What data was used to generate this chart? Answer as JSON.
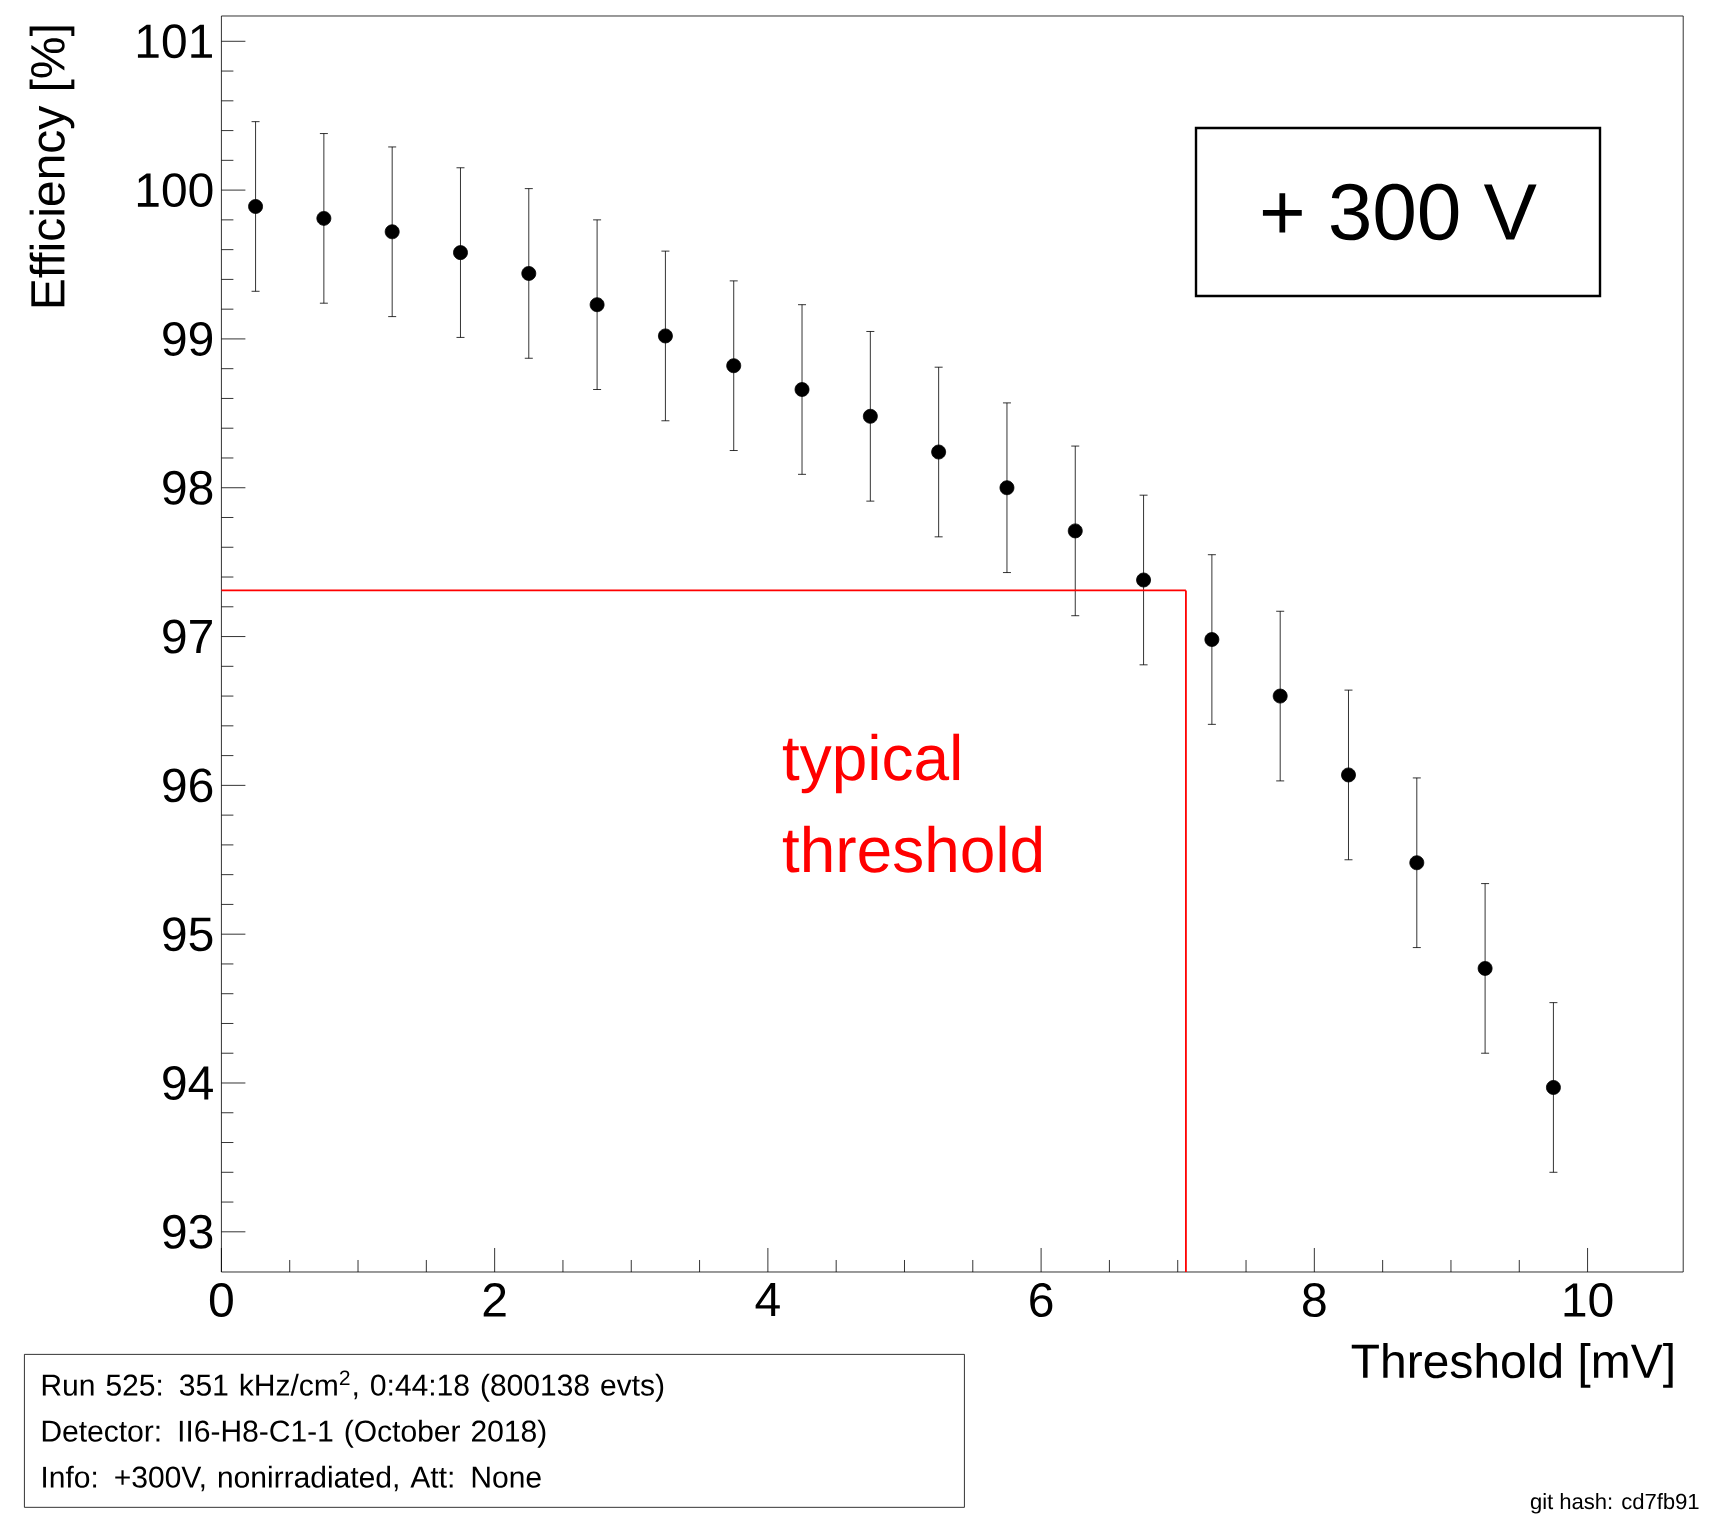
{
  "chart_data": {
    "type": "scatter",
    "xlabel": "Threshold [mV]",
    "ylabel": "Efficiency [%]",
    "x": [
      0.25,
      0.75,
      1.25,
      1.75,
      2.25,
      2.75,
      3.25,
      3.75,
      4.25,
      4.75,
      5.25,
      5.75,
      6.25,
      6.75,
      7.25,
      7.75,
      8.25,
      8.75,
      9.25,
      9.75
    ],
    "series": [
      {
        "color": "#000000",
        "values": [
          99.89,
          99.81,
          99.72,
          99.58,
          99.44,
          99.23,
          99.02,
          98.82,
          98.66,
          98.48,
          98.24,
          98.0,
          97.71,
          97.38,
          96.98,
          96.6,
          96.07,
          95.48,
          94.77,
          93.97
        ],
        "errors": [
          0.57,
          0.57,
          0.57,
          0.57,
          0.57,
          0.57,
          0.57,
          0.57,
          0.57,
          0.57,
          0.57,
          0.57,
          0.57,
          0.57,
          0.57,
          0.57,
          0.57,
          0.57,
          0.57,
          0.57
        ]
      }
    ],
    "marker": "circle",
    "xlim": [
      0,
      10.7
    ],
    "ylim": [
      92.73,
      101.17
    ],
    "xticks": [
      0,
      2,
      4,
      6,
      8,
      10
    ],
    "yticks": [
      93,
      94,
      95,
      96,
      97,
      98,
      99,
      100,
      101
    ],
    "ref_lines": [
      {
        "axis": "y",
        "value": 97.31,
        "color": "#ff0000"
      },
      {
        "axis": "x",
        "value": 7.06,
        "color": "#ff0000",
        "label": "typical threshold"
      }
    ],
    "annotations": [
      "+ 300 V",
      "Run 525: 351 kHz/cm$^{2}$, 0:44:18 (800138 evts)",
      "Detector: II6-H8-C1-1 (October 2018)",
      "Info: +300V, nonirradiated, Att: None",
      "git hash: cd7fb91"
    ]
  }
}
